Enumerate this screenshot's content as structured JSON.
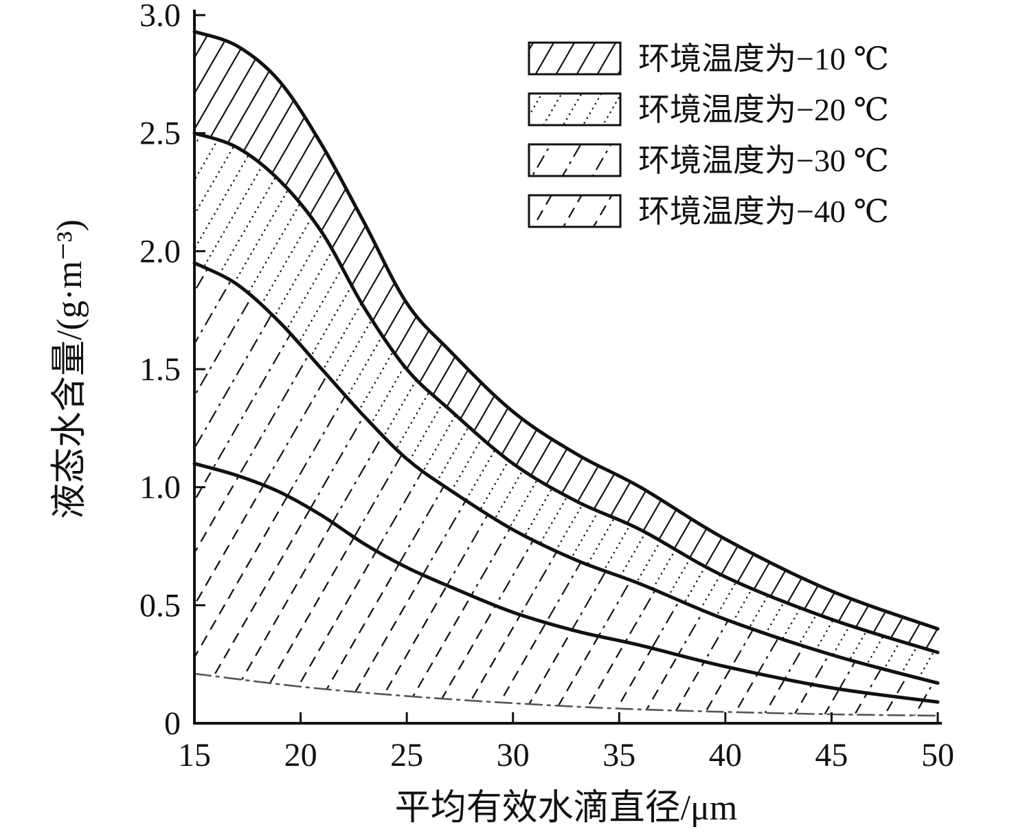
{
  "chart_data": {
    "type": "area",
    "title": "",
    "xlabel": "平均有效水滴直径/μm",
    "ylabel": "液态水含量/(g·m⁻³)",
    "xlim": [
      15,
      50
    ],
    "ylim": [
      0,
      3.0
    ],
    "xticks": [
      15,
      20,
      25,
      30,
      35,
      40,
      45,
      50
    ],
    "xtick_labels": [
      "15",
      "20",
      "25",
      "30",
      "35",
      "40",
      "45",
      "50"
    ],
    "yticks": [
      0,
      0.5,
      1.0,
      1.5,
      2.0,
      2.5,
      3.0
    ],
    "ytick_labels": [
      "0",
      "0.5",
      "1.0",
      "1.5",
      "2.0",
      "2.5",
      "3.0"
    ],
    "grid": false,
    "legend_position": "top-right",
    "ink_color": "#111111",
    "lower_bound_color": "#555555",
    "curves": [
      {
        "id": "c1",
        "name": "envelope upper boundary (−10 ℃)",
        "style": "solid-thick",
        "x": [
          15,
          17,
          19,
          21,
          23,
          25,
          27,
          30,
          33,
          36,
          40,
          45,
          50
        ],
        "y": [
          2.93,
          2.87,
          2.72,
          2.45,
          2.12,
          1.78,
          1.58,
          1.32,
          1.14,
          1.0,
          0.78,
          0.56,
          0.4
        ]
      },
      {
        "id": "c2",
        "name": "boundary −10/−20 ℃",
        "style": "solid-thick",
        "x": [
          15,
          17,
          19,
          21,
          23,
          25,
          27,
          30,
          33,
          36,
          40,
          45,
          50
        ],
        "y": [
          2.5,
          2.44,
          2.3,
          2.08,
          1.76,
          1.5,
          1.33,
          1.1,
          0.94,
          0.82,
          0.62,
          0.44,
          0.3
        ]
      },
      {
        "id": "c3",
        "name": "boundary −20/−30 ℃",
        "style": "solid-thick",
        "x": [
          15,
          17,
          19,
          21,
          23,
          25,
          27,
          30,
          33,
          36,
          40,
          45,
          50
        ],
        "y": [
          1.95,
          1.86,
          1.7,
          1.5,
          1.3,
          1.12,
          0.99,
          0.82,
          0.69,
          0.59,
          0.44,
          0.29,
          0.17
        ]
      },
      {
        "id": "c4",
        "name": "boundary −30/−40 ℃",
        "style": "solid-thick",
        "x": [
          15,
          17,
          19,
          21,
          23,
          25,
          27,
          30,
          33,
          36,
          40,
          45,
          50
        ],
        "y": [
          1.1,
          1.05,
          0.98,
          0.88,
          0.76,
          0.66,
          0.58,
          0.47,
          0.39,
          0.33,
          0.24,
          0.15,
          0.09
        ]
      },
      {
        "id": "c5",
        "name": "envelope lower boundary",
        "style": "dashdot-thin",
        "x": [
          15,
          20,
          25,
          30,
          35,
          40,
          45,
          50
        ],
        "y": [
          0.21,
          0.155,
          0.115,
          0.085,
          0.062,
          0.048,
          0.038,
          0.032
        ]
      }
    ],
    "bands": [
      {
        "id": "minus10",
        "label": "环境温度为−10 ℃",
        "upper": "c1",
        "lower": "c2",
        "hatch": "solid"
      },
      {
        "id": "minus20",
        "label": "环境温度为−20 ℃",
        "upper": "c2",
        "lower": "c3",
        "hatch": "dotted"
      },
      {
        "id": "minus30",
        "label": "环境温度为−30 ℃",
        "upper": "c3",
        "lower": "c4",
        "hatch": "dashdot"
      },
      {
        "id": "minus40",
        "label": "环境温度为−40 ℃",
        "upper": "c4",
        "lower": "c5",
        "hatch": "dashed"
      }
    ],
    "legend": {
      "items": [
        {
          "label": "环境温度为−10 ℃",
          "hatch": "solid"
        },
        {
          "label": "环境温度为−20 ℃",
          "hatch": "dotted"
        },
        {
          "label": "环境温度为−30 ℃",
          "hatch": "dashdot"
        },
        {
          "label": "环境温度为−40 ℃",
          "hatch": "dashed"
        }
      ]
    }
  }
}
